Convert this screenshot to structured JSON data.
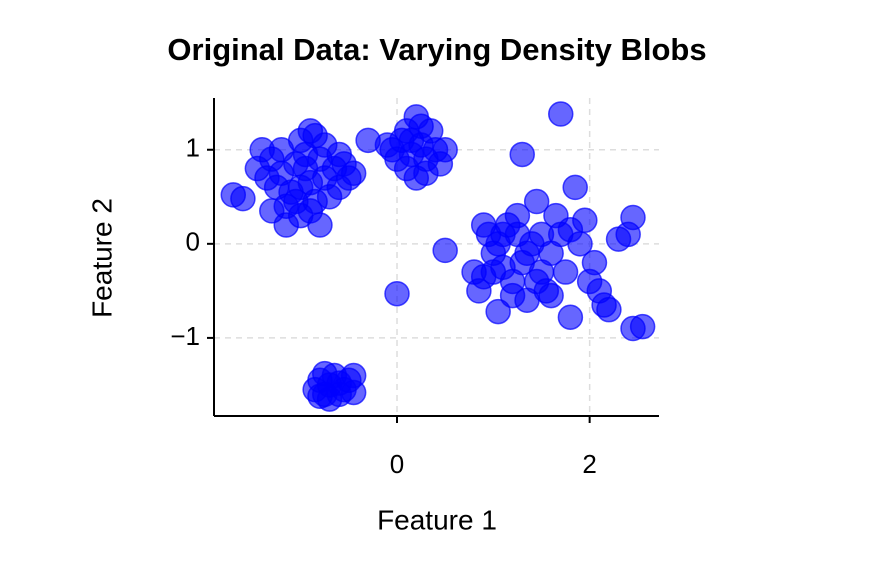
{
  "chart_data": {
    "type": "scatter",
    "title": "Original Data: Varying Density Blobs",
    "xlabel": "Feature 1",
    "ylabel": "Feature 2",
    "color": "#0000ff",
    "xlim": [
      -1.9,
      2.72
    ],
    "ylim": [
      -1.83,
      1.55
    ],
    "xticks": [
      0,
      2
    ],
    "yticks": [
      {
        "value": -1,
        "label": "−1"
      },
      0,
      1
    ],
    "grid": true,
    "x": [
      -1.7,
      -1.6,
      -1.45,
      -1.4,
      -1.3,
      -1.25,
      -1.2,
      -1.15,
      -1.1,
      -1.05,
      -1.0,
      -0.95,
      -0.9,
      -0.85,
      -0.8,
      -0.75,
      -0.7,
      -0.65,
      -0.6,
      -0.55,
      -0.5,
      -1.0,
      -0.9,
      -0.8,
      -1.15,
      -1.3,
      -1.0,
      -0.9,
      -0.85,
      -1.2,
      -0.45,
      -0.3,
      -1.35,
      -0.95,
      -1.05,
      -0.75,
      -0.6,
      -0.05,
      0.0,
      0.05,
      0.1,
      0.15,
      0.2,
      0.25,
      0.3,
      0.35,
      0.4,
      0.45,
      0.2,
      0.3,
      0.1,
      0.5,
      0.25,
      0.15,
      -0.1,
      -0.85,
      -0.8,
      -0.75,
      -0.7,
      -0.65,
      -0.6,
      -0.55,
      -0.5,
      -0.45,
      -0.7,
      -0.8,
      -0.6,
      -0.75,
      -0.45,
      0.5,
      0.8,
      0.85,
      0.9,
      0.9,
      0.95,
      1.0,
      1.05,
      1.1,
      1.05,
      1.15,
      1.2,
      1.25,
      1.3,
      1.35,
      1.4,
      1.45,
      1.5,
      1.55,
      1.6,
      1.65,
      1.7,
      1.75,
      1.8,
      1.85,
      1.9,
      1.95,
      2.0,
      2.05,
      2.1,
      2.15,
      2.2,
      2.3,
      2.4,
      2.45,
      2.45,
      2.55,
      1.7,
      1.3,
      0.0,
      1.2,
      1.35,
      1.45,
      1.5,
      1.25,
      1.0,
      1.1,
      1.6,
      1.8
    ],
    "values": [
      0.52,
      0.48,
      0.8,
      1.0,
      0.9,
      0.6,
      0.75,
      0.4,
      0.55,
      0.85,
      1.1,
      0.95,
      1.2,
      1.15,
      0.9,
      0.7,
      0.5,
      0.8,
      0.6,
      0.85,
      0.7,
      0.3,
      0.35,
      0.2,
      0.2,
      0.35,
      0.6,
      0.65,
      0.45,
      1.0,
      0.75,
      1.1,
      0.7,
      0.8,
      0.45,
      1.05,
      0.95,
      1.0,
      0.9,
      1.1,
      1.2,
      0.95,
      1.35,
      1.05,
      0.9,
      1.2,
      1.0,
      0.85,
      0.7,
      0.75,
      0.8,
      1.0,
      1.25,
      1.1,
      1.05,
      -1.55,
      -1.45,
      -1.6,
      -1.5,
      -1.4,
      -1.6,
      -1.55,
      -1.45,
      -1.58,
      -1.65,
      -1.62,
      -1.48,
      -1.38,
      -1.4,
      -0.07,
      -0.3,
      -0.5,
      -0.35,
      0.2,
      0.1,
      -0.1,
      0.0,
      -0.25,
      -0.72,
      0.2,
      -0.4,
      0.1,
      -0.2,
      -0.6,
      0.0,
      0.45,
      -0.3,
      -0.5,
      -0.1,
      0.3,
      0.1,
      -0.3,
      -0.78,
      0.6,
      0.0,
      0.25,
      -0.4,
      -0.2,
      -0.5,
      -0.65,
      -0.7,
      0.05,
      0.1,
      0.28,
      -0.9,
      -0.88,
      1.38,
      0.95,
      -0.53,
      -0.55,
      -0.1,
      -0.4,
      0.1,
      0.3,
      -0.3,
      0.1,
      -0.55,
      0.15
    ]
  }
}
